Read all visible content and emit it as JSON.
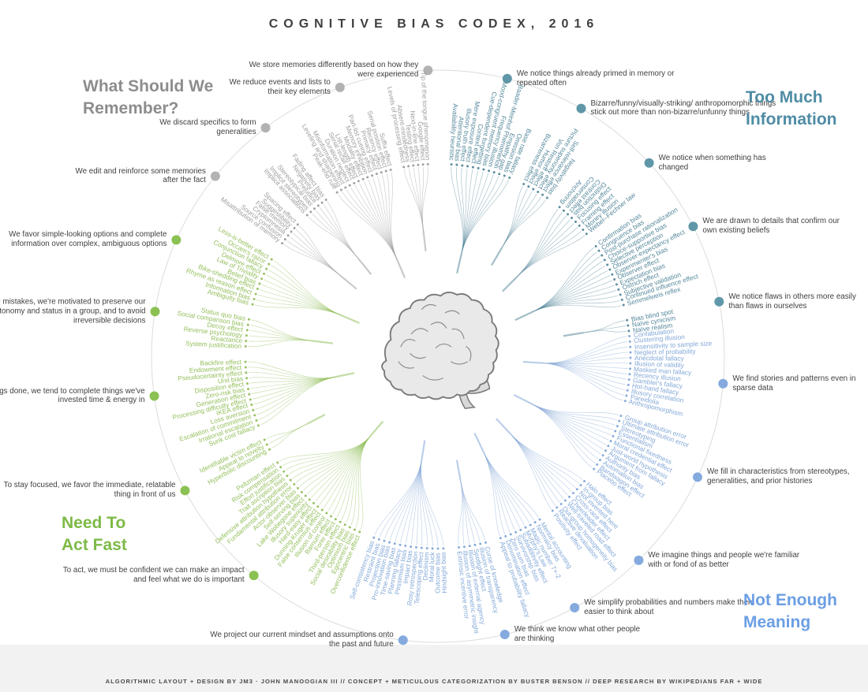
{
  "title": "COGNITIVE BIAS CODEX, 2016",
  "credits": "ALGORITHMIC LAYOUT + DESIGN BY JM3 · JOHN MANOOGIAN III // CONCEPT + METICULOUS CATEGORIZATION BY BUSTER BENSON // DEEP RESEARCH BY WIKIPEDIANS FAR + WIDE",
  "sections": [
    {
      "id": "too-much-information",
      "heading": "Too Much Information",
      "heading_lines": [
        "Too Much",
        "Information"
      ],
      "heading_color": "#4e8ca4",
      "color": "#55889b",
      "dot_color": "#5f97a8",
      "clusters": [
        {
          "id": "primed",
          "annotation": "We notice things already primed in memory or repeated often",
          "biases": [
            "Availability heuristic",
            "Attentional bias",
            "Illusory truth effect",
            "Mere exposure effect",
            "Context effect",
            "Cue-dependent forgetting",
            "Mood-congruent memory bias",
            "Frequency illusion",
            "Baader-Meinhof Phenomenon",
            "Empathy gap",
            "Omission bias",
            "Base rate fallacy"
          ]
        },
        {
          "id": "bizarre",
          "annotation": "Bizarre/funny/visually-striking/ anthropomorphic things stick out more than non-bizarre/unfunny things",
          "biases": [
            "Bizarreness effect",
            "Humor effect",
            "Von Restorff effect",
            "Picture superiority effect",
            "Self-relevance effect",
            "Negativity bias"
          ]
        },
        {
          "id": "changed",
          "annotation": "We notice when something has changed",
          "biases": [
            "Anchoring",
            "Conservatism",
            "Contrast effect",
            "Distinction bias",
            "Focusing effect",
            "Framing effect",
            "Money illusion",
            "Weber–Fechner law"
          ]
        },
        {
          "id": "confirm",
          "annotation": "We are drawn to details that confirm our own existing beliefs",
          "biases": [
            "Confirmation bias",
            "Congruence bias",
            "Post-purchase rationalization",
            "Choice-supportive bias",
            "Selective perception",
            "Observer-expectancy effect",
            "Experimenter's bias",
            "Observer effect",
            "Expectation bias",
            "Ostrich effect",
            "Subjective validation",
            "Continued influence effect",
            "Semmelweis reflex"
          ]
        },
        {
          "id": "flaws",
          "annotation": "We notice flaws in others more easily than flaws in ourselves",
          "biases": [
            "Bias blind spot",
            "Naïve cynicism",
            "Naïve realism"
          ]
        }
      ]
    },
    {
      "id": "not-enough-meaning",
      "heading": "Not Enough Meaning",
      "heading_lines": [
        "Not Enough",
        "Meaning"
      ],
      "heading_color": "#6b9fe4",
      "color": "#83a8d8",
      "dot_color": "#84aade",
      "clusters": [
        {
          "id": "stories",
          "annotation": "We find stories and patterns even in sparse data",
          "biases": [
            "Confabulation",
            "Clustering illusion",
            "Insensitivity to sample size",
            "Neglect of probability",
            "Anecdotal fallacy",
            "Illusion of validity",
            "Masked man fallacy",
            "Recency illusion",
            "Gambler's fallacy",
            "Hot-hand fallacy",
            "Illusory correlation",
            "Pareidolia",
            "Anthropomorphism"
          ]
        },
        {
          "id": "stereotypes",
          "annotation": "We fill in characteristics from stereotypes, generalities, and prior histories",
          "biases": [
            "Group attribution error",
            "Ultimate attribution error",
            "Stereotyping",
            "Essentialism",
            "Functional fixedness",
            "Moral credential effect",
            "Just-world hypothesis",
            "Argument from fallacy",
            "Authority bias",
            "Automation bias",
            "Bandwagon effect",
            "Placebo effect"
          ]
        },
        {
          "id": "familiar",
          "annotation": "We imagine things and people we're familiar with or fond of as better",
          "biases": [
            "Halo effect",
            "In-group bias",
            "Not invented here",
            "Cross-race effect",
            "Cheerleader effect",
            "Well-traveled road effect",
            "Out-group homogeneity bias",
            "Reactive devaluation",
            "Positivity effect"
          ]
        },
        {
          "id": "simplify",
          "annotation": "We simplify probabilities and numbers make them easier to think about",
          "biases": [
            "Mental accounting",
            "Normalcy bias",
            "Magic number 7+-2",
            "Murphy's Law",
            "Subadditivity effect",
            "Survivorship bias",
            "Zero sum bias",
            "Denomination effect",
            "Appeal to probability fallacy"
          ]
        },
        {
          "id": "minds",
          "annotation": "We think we know what other people are thinking",
          "biases": [
            "Curse of knowledge",
            "Illusion of transparency",
            "Spotlight effect",
            "Illusion of external agency",
            "Illusion of asymmetric insight",
            "Extrinsic incentive error"
          ]
        },
        {
          "id": "project",
          "annotation": "We project our current mindset and assumptions onto the past and future",
          "biases": [
            "Hindsight bias",
            "Outcome bias",
            "Moral luck",
            "Declinism",
            "Telescoping effect",
            "Rosy retrospection",
            "Impact bias",
            "Pessimism bias",
            "Planning fallacy",
            "Time-saving bias",
            "Pro-innovation bias",
            "Projection bias",
            "Restraint bias",
            "Self-consistency bias"
          ]
        }
      ]
    },
    {
      "id": "need-to-act-fast",
      "heading": "Need To Act Fast",
      "heading_lines": [
        "Need To",
        "Act Fast"
      ],
      "heading_color": "#7dba47",
      "color": "#94bf5c",
      "dot_color": "#8bc152",
      "clusters": [
        {
          "id": "confident",
          "annotation": "To act, we must be confident we can make an impact and feel what we do is important",
          "biases": [
            "Overconfidence effect",
            "Egocentric bias",
            "Optimism bias",
            "Social desirability bias",
            "Third-person effect",
            "Forer effect",
            "Barnum effect",
            "Illusion of control",
            "False consensus effect",
            "Dunning-Kruger effect",
            "Hard-easy effect",
            "Illusory superiority",
            "Lake Wobegone effect",
            "Self-serving bias",
            "Actor-observer bias",
            "Fundamental attribution error",
            "Defensive attribution hypothesis",
            "Trait ascription bias",
            "Effort justification",
            "Risk compensation",
            "Peltzman effect"
          ]
        },
        {
          "id": "immediate",
          "annotation": "To stay focused, we favor the immediate, relatable thing in front of us",
          "biases": [
            "Hyperbolic discounting",
            "Appeal to novelty",
            "Identifiable victim effect"
          ]
        },
        {
          "id": "invested",
          "annotation": "To get things done, we tend to complete things we've invested time & energy in",
          "biases": [
            "Sunk cost fallacy",
            "Irrational escalation",
            "Escalation of commitment",
            "Loss aversion",
            "IKEA effect",
            "Processing difficulty effect",
            "Generation effect",
            "Zero-risk bias",
            "Disposition effect",
            "Unit bias",
            "Pseudocertainty effect",
            "Endowment effect",
            "Backfire effect"
          ]
        },
        {
          "id": "autonomy",
          "annotation": "To avoid mistakes, we're motivated to preserve our autonomy and status in a group, and to avoid irreversible decisions",
          "biases": [
            "System justification",
            "Reactance",
            "Reverse psychology",
            "Decoy effect",
            "Social comparison bias",
            "Status quo bias"
          ]
        },
        {
          "id": "simple",
          "annotation": "We favor simple-looking options and complete information over complex, ambiguous options",
          "biases": [
            "Ambiguity bias",
            "Information bias",
            "Rhyme as reason effect",
            "Bike-shedding effect",
            "Belief bias",
            "Law of Triviality",
            "Delmore effect",
            "Conjunction fallacy",
            "Occam's razor",
            "Less-is-better effect"
          ]
        }
      ]
    },
    {
      "id": "what-should-we-remember",
      "heading": "What Should We Remember?",
      "heading_lines": [
        "What Should We",
        "Remember?"
      ],
      "heading_color": "#8d8d8d",
      "color": "#9d9d9d",
      "dot_color": "#b2b2b2",
      "clusters": [
        {
          "id": "edit",
          "annotation": "We edit and reinforce some memories after the fact",
          "biases": [
            "Misattribution of memory",
            "Source confusion",
            "Cryptomnesia",
            "False memory",
            "Suggestibility",
            "Spacing effect"
          ]
        },
        {
          "id": "discard",
          "annotation": "We discard specifics to form generalities",
          "biases": [
            "Implicit associations",
            "Implicit stereotypes",
            "Stereotypical bias",
            "Prejudice",
            "Negativity bias",
            "Fading affect bias"
          ]
        },
        {
          "id": "reduce",
          "annotation": "We reduce events and lists to their key elements",
          "biases": [
            "Peak-end rule",
            "Leveling and sharpening",
            "Misinformation effect",
            "Duration neglect",
            "Serial recall effect",
            "List-length effect",
            "Modality effect",
            "Memory inhibition",
            "Part-list cueing effect",
            "Primacy effect",
            "Recency effect",
            "Serial position effect",
            "Suffix effect"
          ]
        },
        {
          "id": "store",
          "annotation": "We store memories differently based on how they were experienced",
          "biases": [
            "Levels of processing effect",
            "Absent-mindedness",
            "Testing effect",
            "Next-in-line effect",
            "Google effect",
            "Tip of the tongue phenomenon"
          ]
        }
      ]
    }
  ]
}
